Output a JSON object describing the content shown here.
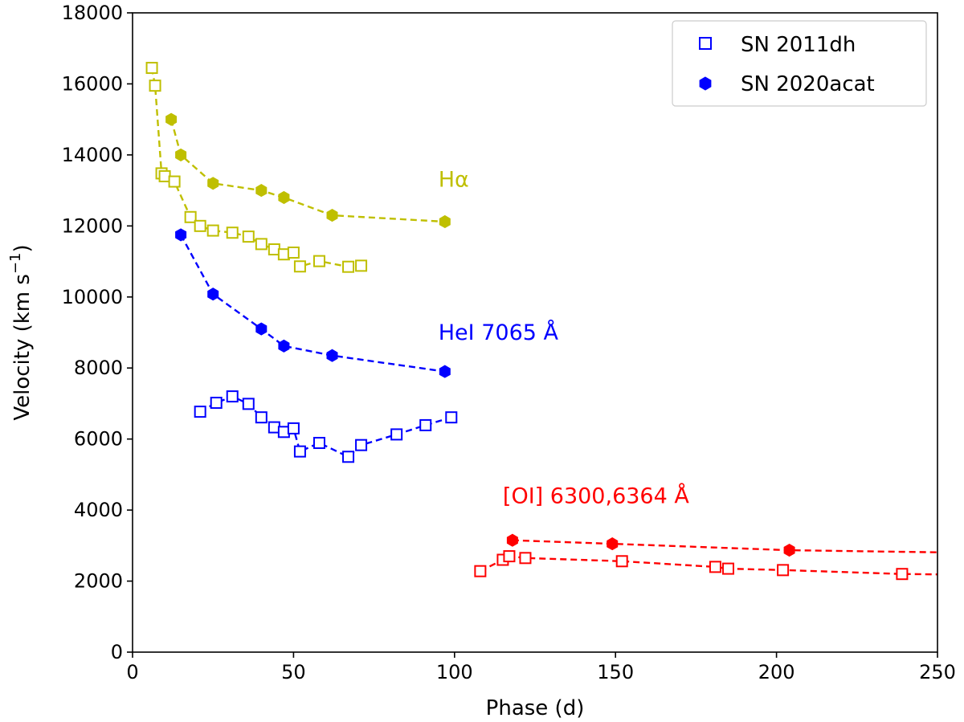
{
  "chart_data": {
    "type": "line",
    "xlabel": "Phase (d)",
    "ylabel": "Velocity (km s",
    "ylabel_sup": "−1",
    "ylabel_end": ")",
    "xlim": [
      0,
      250
    ],
    "ylim": [
      0,
      18000
    ],
    "xticks": [
      0,
      50,
      100,
      150,
      200,
      250
    ],
    "yticks": [
      0,
      2000,
      4000,
      6000,
      8000,
      10000,
      12000,
      14000,
      16000,
      18000
    ],
    "grid": false,
    "legend_position": "top-right",
    "legend": [
      {
        "label": "SN 2011dh",
        "marker": "open-square",
        "color": "#0000ff"
      },
      {
        "label": "SN 2020acat",
        "marker": "filled-hexagon",
        "color": "#0000ff"
      }
    ],
    "annotations": [
      {
        "text": "Hα",
        "color": "#bfbf00",
        "x": 95,
        "y": 13100
      },
      {
        "text": "HeI 7065 Å",
        "color": "#0000ff",
        "x": 95,
        "y": 8800
      },
      {
        "text": "[OI] 6300,6364 Å",
        "color": "#ff0000",
        "x": 115,
        "y": 4200
      }
    ],
    "series": [
      {
        "name": "SN 2011dh Hα",
        "color": "#bfbf00",
        "marker": "open-square",
        "x": [
          6,
          7,
          9,
          10,
          13,
          18,
          21,
          25,
          31,
          36,
          40,
          44,
          47,
          50,
          52,
          58,
          67,
          71
        ],
        "y": [
          16450,
          15950,
          13480,
          13400,
          13250,
          12250,
          12000,
          11870,
          11810,
          11700,
          11490,
          11340,
          11200,
          11250,
          10860,
          11010,
          10850,
          10880
        ]
      },
      {
        "name": "SN 2020acat Hα",
        "color": "#bfbf00",
        "marker": "filled-hexagon",
        "x": [
          12,
          15,
          25,
          40,
          47,
          62,
          97
        ],
        "y": [
          15000,
          14000,
          13200,
          13000,
          12800,
          12300,
          12120
        ]
      },
      {
        "name": "SN 2011dh HeI 7065",
        "color": "#0000ff",
        "marker": "open-square",
        "x": [
          21,
          26,
          31,
          36,
          40,
          44,
          47,
          50,
          52,
          58,
          67,
          71,
          82,
          91,
          99
        ],
        "y": [
          6770,
          7020,
          7200,
          6990,
          6610,
          6330,
          6200,
          6300,
          5650,
          5890,
          5500,
          5830,
          6130,
          6390,
          6610
        ]
      },
      {
        "name": "SN 2020acat HeI 7065",
        "color": "#0000ff",
        "marker": "filled-hexagon",
        "x": [
          15,
          25,
          40,
          47,
          62,
          97
        ],
        "y": [
          11750,
          10080,
          9100,
          8620,
          8350,
          7900
        ]
      },
      {
        "name": "SN 2011dh [OI]",
        "color": "#ff0000",
        "marker": "open-square",
        "x": [
          108,
          115,
          117,
          122,
          152,
          181,
          185,
          202,
          239,
          250
        ],
        "y": [
          2280,
          2600,
          2700,
          2650,
          2560,
          2400,
          2350,
          2310,
          2200,
          2190
        ],
        "markers_visible": [
          true,
          true,
          true,
          true,
          true,
          true,
          true,
          true,
          true,
          false
        ]
      },
      {
        "name": "SN 2020acat [OI]",
        "color": "#ff0000",
        "marker": "filled-hexagon",
        "x": [
          118,
          149,
          204,
          250
        ],
        "y": [
          3150,
          3050,
          2870,
          2810
        ],
        "markers_visible": [
          true,
          true,
          true,
          false
        ]
      }
    ]
  }
}
